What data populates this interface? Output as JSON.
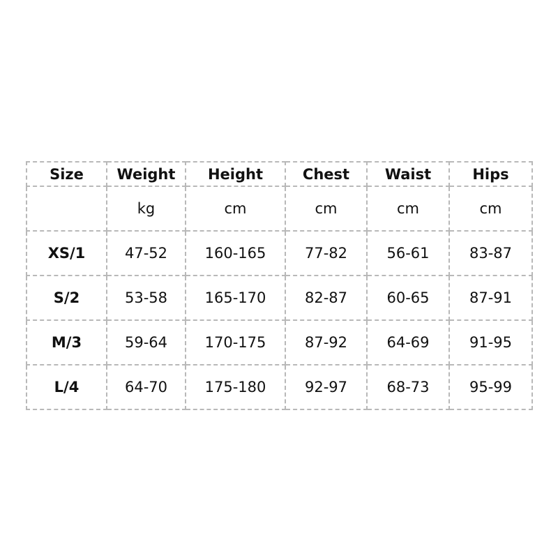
{
  "headers": [
    "Size",
    "Weight",
    "Height",
    "Chest",
    "Waist",
    "Hips"
  ],
  "units": [
    "",
    "kg",
    "cm",
    "cm",
    "cm",
    "cm"
  ],
  "rows": [
    [
      "XS/1",
      "47-52",
      "160-165",
      "77-82",
      "56-61",
      "83-87"
    ],
    [
      "S/2",
      "53-58",
      "165-170",
      "82-87",
      "60-65",
      "87-91"
    ],
    [
      "M/3",
      "59-64",
      "170-175",
      "87-92",
      "64-69",
      "91-95"
    ],
    [
      "L/4",
      "64-70",
      "175-180",
      "92-97",
      "68-73",
      "95-99"
    ]
  ]
}
